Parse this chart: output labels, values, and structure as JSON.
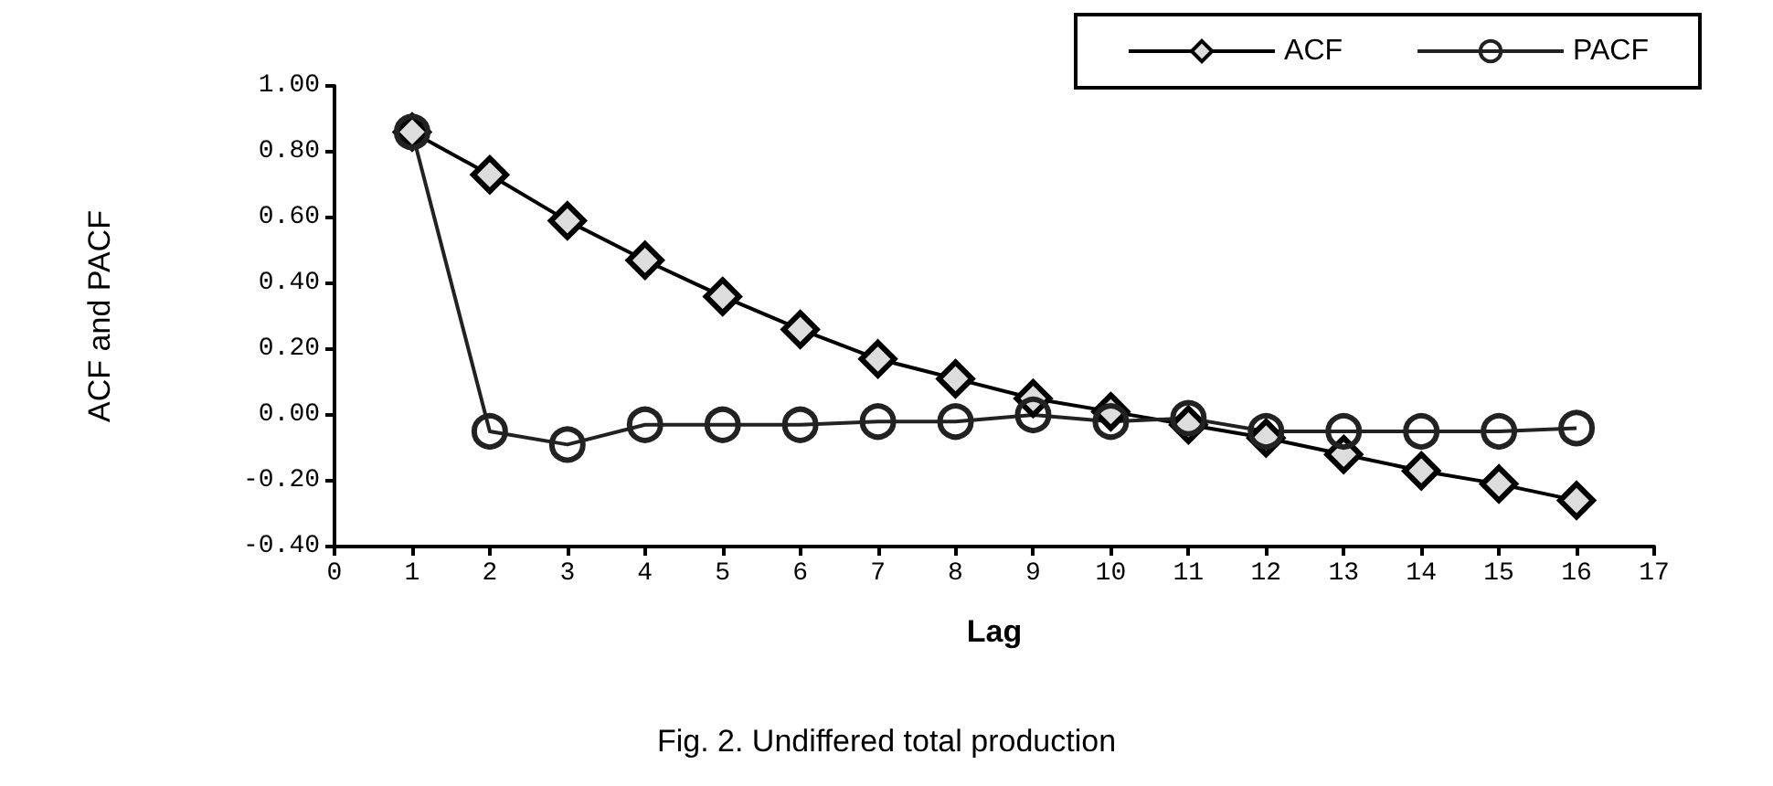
{
  "chart_data": {
    "type": "line",
    "title": "Fig. 2. Undiffered total production",
    "xlabel": "Lag",
    "ylabel": "ACF and PACF",
    "x": [
      1,
      2,
      3,
      4,
      5,
      6,
      7,
      8,
      9,
      10,
      11,
      12,
      13,
      14,
      15,
      16
    ],
    "series": [
      {
        "name": "ACF",
        "color": "#000000",
        "marker": "diamond",
        "values": [
          0.86,
          0.73,
          0.59,
          0.47,
          0.36,
          0.26,
          0.17,
          0.11,
          0.05,
          0.01,
          -0.03,
          -0.07,
          -0.12,
          -0.17,
          -0.21,
          -0.26
        ]
      },
      {
        "name": "PACF",
        "color": "#222222",
        "marker": "circle",
        "values": [
          0.86,
          -0.05,
          -0.09,
          -0.03,
          -0.03,
          -0.03,
          -0.02,
          -0.02,
          0.0,
          -0.02,
          -0.01,
          -0.05,
          -0.05,
          -0.05,
          -0.05,
          -0.04
        ]
      }
    ],
    "xlim": [
      0,
      17
    ],
    "xticks": [
      0,
      1,
      2,
      3,
      4,
      5,
      6,
      7,
      8,
      9,
      10,
      11,
      12,
      13,
      14,
      15,
      16,
      17
    ],
    "ylim": [
      -0.4,
      1.0
    ],
    "yticks": [
      {
        "value": -0.4,
        "label": "-0.40"
      },
      {
        "value": -0.2,
        "label": "-0.20"
      },
      {
        "value": 0,
        "label": "0.00"
      },
      {
        "value": 0.2,
        "label": "0.20"
      },
      {
        "value": 0.4,
        "label": "0.40"
      },
      {
        "value": 0.6,
        "label": "0.60"
      },
      {
        "value": 0.8,
        "label": "0.80"
      },
      {
        "value": 1.0,
        "label": "1.00"
      }
    ],
    "grid": false,
    "legend": "top right",
    "line_style": "solid"
  }
}
